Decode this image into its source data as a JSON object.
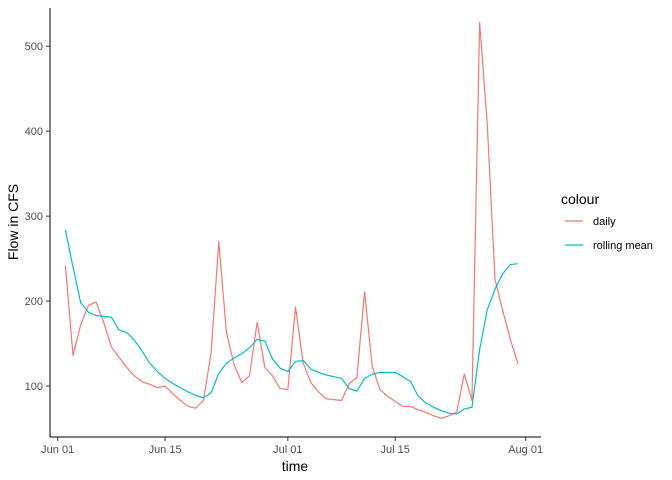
{
  "chart_data": {
    "type": "line",
    "xlabel": "time",
    "ylabel": "Flow in CFS",
    "x_tick_labels": [
      "Jun 01",
      "Jun 15",
      "Jul 01",
      "Jul 15",
      "Aug 01"
    ],
    "x_tick_dates": [
      "2023-06-01",
      "2023-06-15",
      "2023-07-01",
      "2023-07-15",
      "2023-08-01"
    ],
    "y_ticks": [
      100,
      200,
      300,
      400,
      500
    ],
    "xlim": [
      "2023-05-31",
      "2023-08-03"
    ],
    "ylim": [
      40,
      545
    ],
    "grid": false,
    "legend": {
      "title": "colour",
      "placement": "right"
    },
    "x": [
      "2023-06-02",
      "2023-06-03",
      "2023-06-04",
      "2023-06-05",
      "2023-06-06",
      "2023-06-07",
      "2023-06-08",
      "2023-06-09",
      "2023-06-10",
      "2023-06-11",
      "2023-06-12",
      "2023-06-13",
      "2023-06-14",
      "2023-06-15",
      "2023-06-16",
      "2023-06-17",
      "2023-06-18",
      "2023-06-19",
      "2023-06-20",
      "2023-06-21",
      "2023-06-22",
      "2023-06-23",
      "2023-06-24",
      "2023-06-25",
      "2023-06-26",
      "2023-06-27",
      "2023-06-28",
      "2023-06-29",
      "2023-06-30",
      "2023-07-01",
      "2023-07-02",
      "2023-07-03",
      "2023-07-04",
      "2023-07-05",
      "2023-07-06",
      "2023-07-07",
      "2023-07-08",
      "2023-07-09",
      "2023-07-10",
      "2023-07-11",
      "2023-07-12",
      "2023-07-13",
      "2023-07-14",
      "2023-07-15",
      "2023-07-16",
      "2023-07-17",
      "2023-07-18",
      "2023-07-19",
      "2023-07-20",
      "2023-07-21",
      "2023-07-22",
      "2023-07-23",
      "2023-07-24",
      "2023-07-25",
      "2023-07-26",
      "2023-07-27",
      "2023-07-28",
      "2023-07-29",
      "2023-07-30",
      "2023-07-31"
    ],
    "series": [
      {
        "name": "daily",
        "color": "#F8766D",
        "values": [
          242,
          136,
          172,
          195,
          199,
          175,
          146,
          134,
          122,
          112,
          105,
          102,
          98,
          100,
          91,
          83,
          76,
          74,
          83,
          139,
          270,
          163,
          125,
          104,
          112,
          175,
          122,
          112,
          97,
          96,
          193,
          127,
          104,
          93,
          85,
          84,
          83,
          103,
          110,
          211,
          123,
          96,
          88,
          82,
          76,
          76,
          72,
          69,
          65,
          62,
          65,
          69,
          114,
          83,
          528,
          408,
          226,
          189,
          155,
          126
        ]
      },
      {
        "name": "rolling mean",
        "color": "#00BFC4",
        "values": [
          284,
          240,
          198,
          187,
          183,
          182,
          181,
          166,
          163,
          154,
          141,
          127,
          117,
          109,
          103,
          98,
          93,
          89,
          86,
          92,
          115,
          127,
          133,
          138,
          145,
          155,
          153,
          132,
          121,
          117,
          129,
          130,
          120,
          116,
          113,
          111,
          109,
          97,
          94,
          109,
          114,
          116,
          116,
          116,
          111,
          105,
          88,
          80,
          75,
          71,
          68,
          67,
          73,
          75,
          143,
          190,
          214,
          232,
          243,
          244
        ]
      }
    ]
  }
}
